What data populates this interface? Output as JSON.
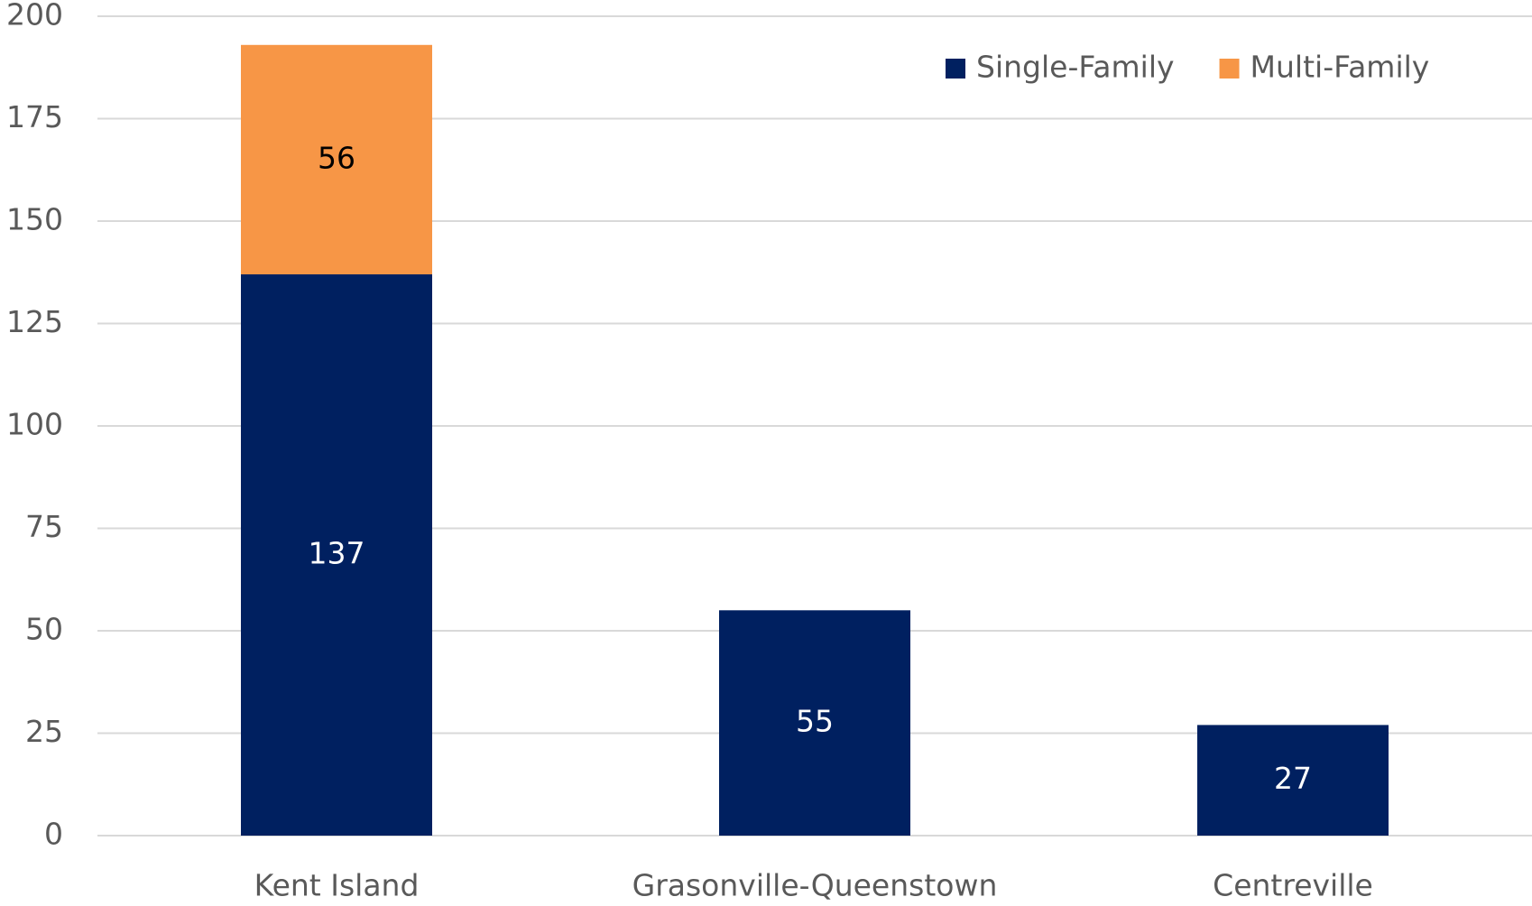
{
  "chart_data": {
    "type": "stacked_bar",
    "categories": [
      "Kent Island",
      "Grasonville-Queenstown",
      "Centreville"
    ],
    "series": [
      {
        "name": "Single-Family",
        "color": "#002060",
        "values": [
          137,
          55,
          27
        ]
      },
      {
        "name": "Multi-Family",
        "color": "#f79646",
        "values": [
          56,
          null,
          null
        ]
      }
    ],
    "ylim": [
      0,
      200
    ],
    "yticks": [
      0,
      25,
      50,
      75,
      100,
      125,
      150,
      175,
      200
    ],
    "grid": true,
    "legend": "upper right"
  }
}
